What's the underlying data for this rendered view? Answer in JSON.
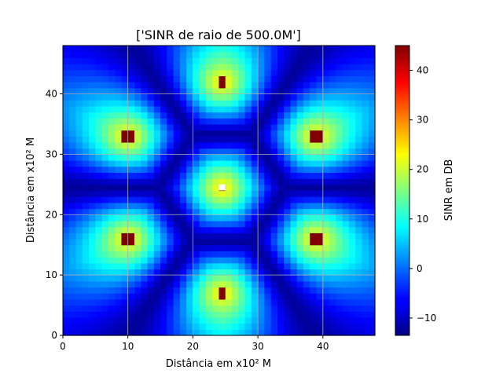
{
  "chart_data": {
    "type": "heatmap",
    "title": "['SINR de raio de 500.0M']",
    "xlabel": "Distância em x10² M",
    "ylabel": "Distância em x10² M",
    "xlim": [
      0,
      48
    ],
    "ylim": [
      0,
      48
    ],
    "grid": true,
    "colormap": "jet",
    "x_ticks": [
      "0",
      "10",
      "20",
      "30",
      "40"
    ],
    "y_ticks": [
      "0",
      "10",
      "20",
      "30",
      "40"
    ],
    "colorbar": {
      "label": "SINR em DB",
      "range": [
        -13.5,
        45
      ],
      "ticks": [
        "−10",
        "0",
        "10",
        "20",
        "30",
        "40"
      ]
    },
    "cell_size": 1,
    "sites": [
      {
        "x": 24.5,
        "y": 24.5,
        "peak_db": 45,
        "center": true
      },
      {
        "x": 24.5,
        "y": 42.0,
        "peak_db": 45
      },
      {
        "x": 24.5,
        "y": 7.0,
        "peak_db": 45
      },
      {
        "x": 10.0,
        "y": 33.0,
        "peak_db": 45
      },
      {
        "x": 39.0,
        "y": 33.0,
        "peak_db": 45
      },
      {
        "x": 10.0,
        "y": 16.0,
        "peak_db": 45
      },
      {
        "x": 39.0,
        "y": 16.0,
        "peak_db": 45
      }
    ],
    "cell_edge_db": -12,
    "near_site_db": 25
  }
}
